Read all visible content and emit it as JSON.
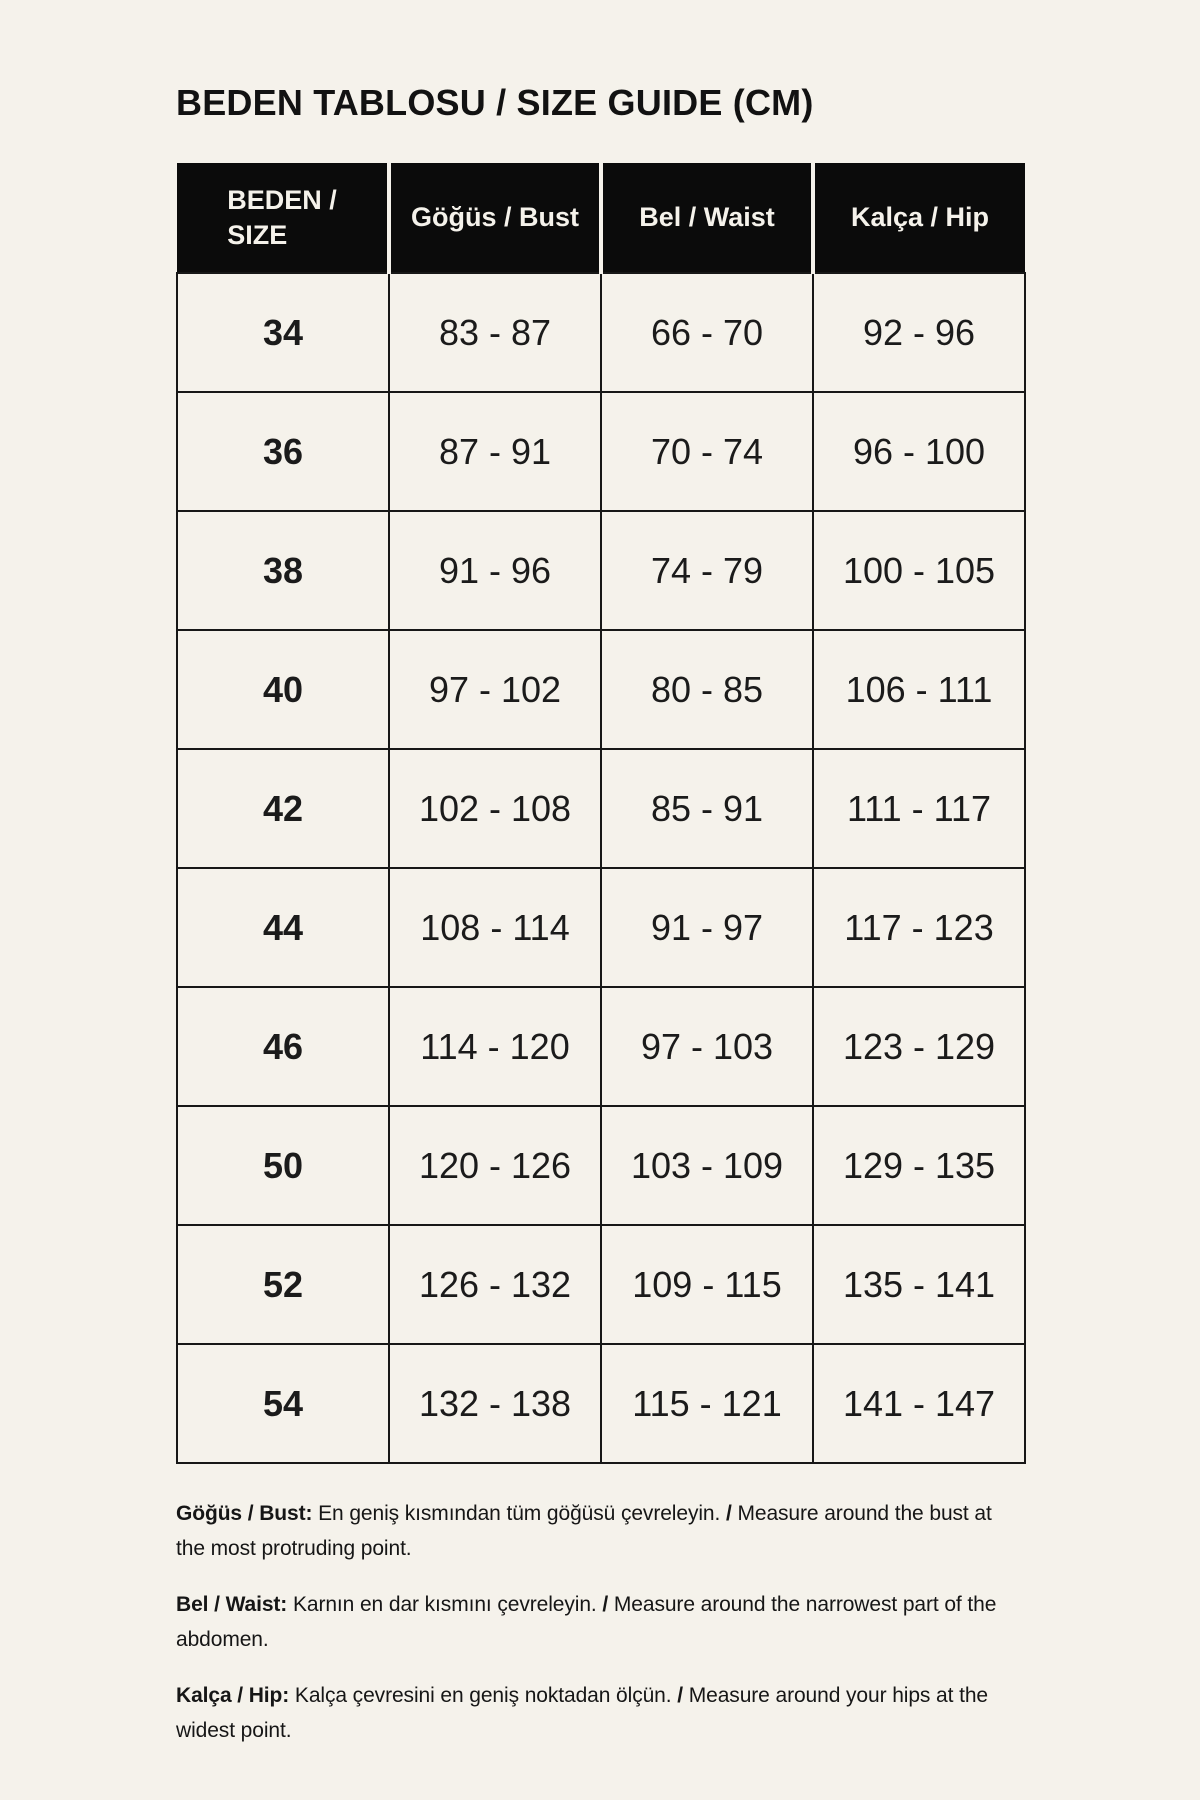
{
  "title": "BEDEN TABLOSU / SIZE GUIDE (CM)",
  "colors": {
    "background": "#F5F2EB",
    "header_background": "#0B0B0B",
    "header_text": "#F5F2EB",
    "border": "#171717",
    "text": "#151515"
  },
  "table": {
    "header": {
      "size_line1": "BEDEN /",
      "size_line2": "SIZE",
      "columns": [
        "Göğüs / Bust",
        "Bel / Waist",
        "Kalça / Hip"
      ]
    },
    "rows": [
      {
        "size": "34",
        "bust": "83 - 87",
        "waist": "66 - 70",
        "hip": "92 - 96"
      },
      {
        "size": "36",
        "bust": "87 - 91",
        "waist": "70 - 74",
        "hip": "96 - 100"
      },
      {
        "size": "38",
        "bust": "91 - 96",
        "waist": "74 - 79",
        "hip": "100 - 105"
      },
      {
        "size": "40",
        "bust": "97 - 102",
        "waist": "80 - 85",
        "hip": "106 - 111"
      },
      {
        "size": "42",
        "bust": "102 - 108",
        "waist": "85 - 91",
        "hip": "111 - 117"
      },
      {
        "size": "44",
        "bust": "108 - 114",
        "waist": "91 - 97",
        "hip": "117 - 123"
      },
      {
        "size": "46",
        "bust": "114 - 120",
        "waist": "97 - 103",
        "hip": "123 - 129"
      },
      {
        "size": "50",
        "bust": "120 - 126",
        "waist": "103 - 109",
        "hip": "129 - 135"
      },
      {
        "size": "52",
        "bust": "126 - 132",
        "waist": "109 - 115",
        "hip": "135 - 141"
      },
      {
        "size": "54",
        "bust": "132 - 138",
        "waist": "115 - 121",
        "hip": "141 - 147"
      }
    ]
  },
  "notes": [
    {
      "label": "Göğüs / Bust:",
      "tr": "En geniş kısmından tüm göğüsü çevreleyin.",
      "slash": "/",
      "en": "Measure around the bust at the most protruding point."
    },
    {
      "label": "Bel / Waist:",
      "tr": "Karnın en dar kısmını çevreleyin.",
      "slash": "/",
      "en": "Measure around the narrowest part of the abdomen."
    },
    {
      "label": "Kalça / Hip:",
      "tr": "Kalça çevresini en geniş noktadan ölçün.",
      "slash": "/",
      "en": "Measure around your hips at the widest point."
    }
  ]
}
